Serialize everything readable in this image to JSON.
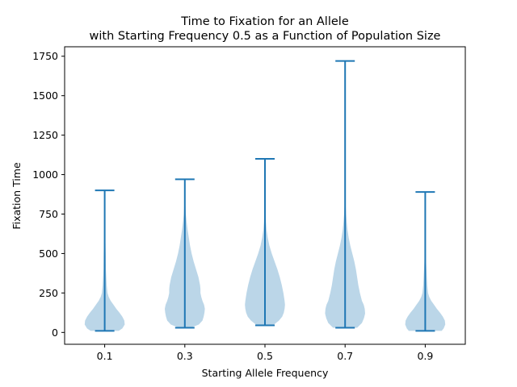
{
  "chart_data": {
    "type": "violin",
    "title_line1": "Time to Fixation for an Allele",
    "title_line2": "with Starting Frequency 0.5 as a Function of Population Size",
    "xlabel": "Starting Allele Frequency",
    "ylabel": "Fixation Time",
    "categories": [
      "0.1",
      "0.3",
      "0.5",
      "0.7",
      "0.9"
    ],
    "ylim": [
      -75,
      1810
    ],
    "yticks": [
      0,
      250,
      500,
      750,
      1000,
      1250,
      1500,
      1750
    ],
    "series": [
      {
        "category": "0.1",
        "min": 10,
        "max": 900,
        "profile": [
          [
            10,
            0.7
          ],
          [
            25,
            0.88
          ],
          [
            50,
            1.0
          ],
          [
            75,
            0.98
          ],
          [
            100,
            0.88
          ],
          [
            125,
            0.74
          ],
          [
            150,
            0.58
          ],
          [
            175,
            0.44
          ],
          [
            200,
            0.3
          ],
          [
            225,
            0.2
          ],
          [
            250,
            0.14
          ],
          [
            300,
            0.1
          ],
          [
            350,
            0.08
          ],
          [
            400,
            0.06
          ],
          [
            500,
            0.05
          ],
          [
            600,
            0.03
          ],
          [
            700,
            0.02
          ],
          [
            800,
            0.01
          ],
          [
            900,
            0.0
          ]
        ]
      },
      {
        "category": "0.3",
        "min": 30,
        "max": 970,
        "profile": [
          [
            30,
            0.3
          ],
          [
            50,
            0.7
          ],
          [
            75,
            0.88
          ],
          [
            100,
            0.94
          ],
          [
            125,
            0.98
          ],
          [
            150,
            1.0
          ],
          [
            175,
            0.96
          ],
          [
            200,
            0.88
          ],
          [
            225,
            0.82
          ],
          [
            250,
            0.78
          ],
          [
            275,
            0.78
          ],
          [
            300,
            0.76
          ],
          [
            325,
            0.72
          ],
          [
            350,
            0.68
          ],
          [
            400,
            0.56
          ],
          [
            450,
            0.44
          ],
          [
            500,
            0.34
          ],
          [
            550,
            0.26
          ],
          [
            600,
            0.2
          ],
          [
            650,
            0.14
          ],
          [
            700,
            0.09
          ],
          [
            750,
            0.05
          ],
          [
            800,
            0.03
          ],
          [
            900,
            0.01
          ],
          [
            970,
            0.0
          ]
        ]
      },
      {
        "category": "0.5",
        "min": 45,
        "max": 1100,
        "profile": [
          [
            45,
            0.4
          ],
          [
            75,
            0.7
          ],
          [
            100,
            0.86
          ],
          [
            125,
            0.94
          ],
          [
            150,
            0.98
          ],
          [
            175,
            1.0
          ],
          [
            200,
            0.98
          ],
          [
            250,
            0.92
          ],
          [
            300,
            0.84
          ],
          [
            350,
            0.74
          ],
          [
            400,
            0.62
          ],
          [
            450,
            0.48
          ],
          [
            500,
            0.34
          ],
          [
            550,
            0.22
          ],
          [
            600,
            0.14
          ],
          [
            650,
            0.08
          ],
          [
            700,
            0.05
          ],
          [
            800,
            0.03
          ],
          [
            900,
            0.02
          ],
          [
            1000,
            0.01
          ],
          [
            1100,
            0.0
          ]
        ]
      },
      {
        "category": "0.7",
        "min": 30,
        "max": 1720,
        "profile": [
          [
            30,
            0.6
          ],
          [
            60,
            0.84
          ],
          [
            90,
            0.94
          ],
          [
            120,
            1.0
          ],
          [
            150,
            0.98
          ],
          [
            175,
            0.93
          ],
          [
            200,
            0.84
          ],
          [
            250,
            0.74
          ],
          [
            300,
            0.66
          ],
          [
            350,
            0.6
          ],
          [
            400,
            0.54
          ],
          [
            450,
            0.46
          ],
          [
            500,
            0.36
          ],
          [
            550,
            0.26
          ],
          [
            600,
            0.18
          ],
          [
            650,
            0.12
          ],
          [
            700,
            0.08
          ],
          [
            750,
            0.05
          ],
          [
            800,
            0.03
          ],
          [
            900,
            0.02
          ],
          [
            1000,
            0.01
          ],
          [
            1200,
            0.005
          ],
          [
            1720,
            0.0
          ]
        ]
      },
      {
        "category": "0.9",
        "min": 10,
        "max": 890,
        "profile": [
          [
            10,
            0.82
          ],
          [
            25,
            0.92
          ],
          [
            50,
            1.0
          ],
          [
            75,
            0.98
          ],
          [
            100,
            0.88
          ],
          [
            125,
            0.74
          ],
          [
            150,
            0.58
          ],
          [
            175,
            0.44
          ],
          [
            200,
            0.3
          ],
          [
            225,
            0.2
          ],
          [
            250,
            0.14
          ],
          [
            300,
            0.1
          ],
          [
            350,
            0.08
          ],
          [
            400,
            0.06
          ],
          [
            450,
            0.04
          ],
          [
            500,
            0.03
          ],
          [
            600,
            0.02
          ],
          [
            700,
            0.01
          ],
          [
            890,
            0.0
          ]
        ]
      }
    ]
  }
}
